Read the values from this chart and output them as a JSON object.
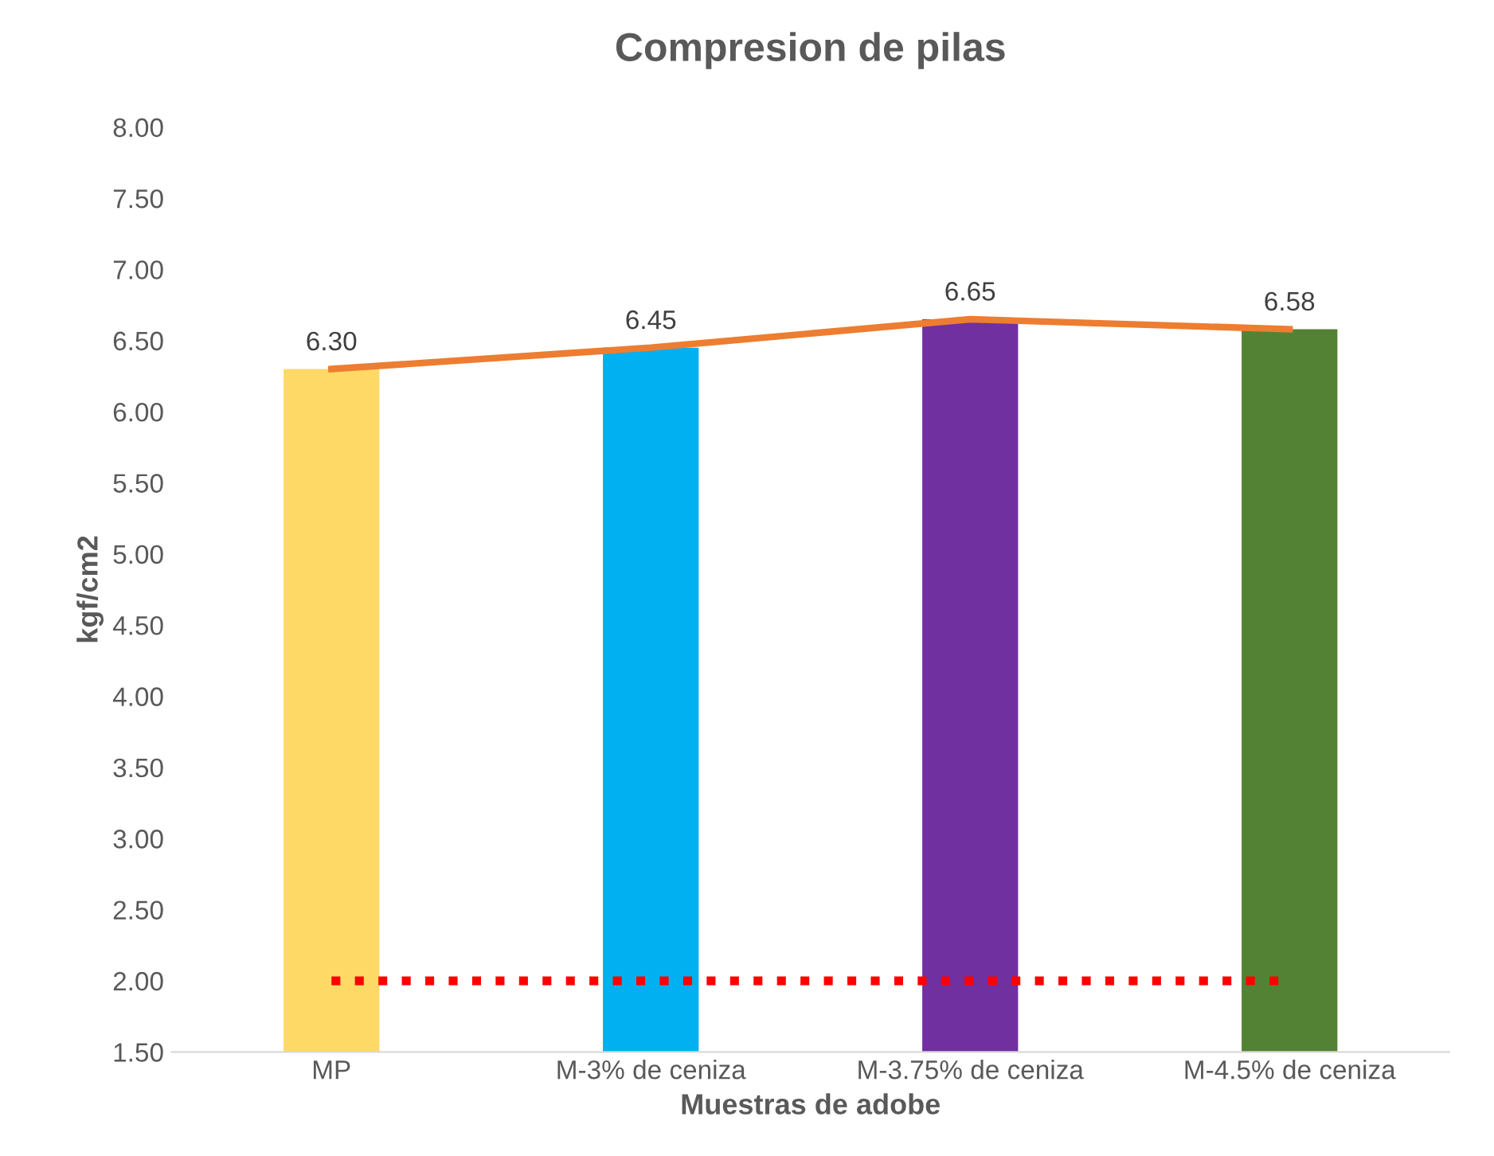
{
  "chart_data": {
    "type": "bar",
    "title": "Compresion de pilas",
    "xlabel": "Muestras de adobe",
    "ylabel": "kgf/cm2",
    "categories": [
      "MP",
      "M-3% de ceniza",
      "M-3.75% de ceniza",
      "M-4.5% de ceniza"
    ],
    "series": [
      {
        "colors": [
          "#ffd966",
          "#00b0f0",
          "#7030a0",
          "#548235"
        ],
        "values": [
          6.3,
          6.45,
          6.65,
          6.58
        ],
        "value_labels": [
          "6.30",
          "6.45",
          "6.65",
          "6.58"
        ]
      },
      {
        "type": "line",
        "color": "#ed7d31",
        "values": [
          6.3,
          6.45,
          6.65,
          6.58
        ],
        "line_style": "solid"
      },
      {
        "type": "line",
        "color": "#ff0000",
        "values": [
          2.0,
          2.0,
          2.0,
          2.0
        ],
        "line_style": "dotted"
      }
    ],
    "ylim": [
      1.5,
      8.0
    ],
    "yticks": [
      {
        "value": 1.5,
        "label": "1.50"
      },
      {
        "value": 2.0,
        "label": "2.00"
      },
      {
        "value": 2.5,
        "label": "2.50"
      },
      {
        "value": 3.0,
        "label": "3.00"
      },
      {
        "value": 3.5,
        "label": "3.50"
      },
      {
        "value": 4.0,
        "label": "4.00"
      },
      {
        "value": 4.5,
        "label": "4.50"
      },
      {
        "value": 5.0,
        "label": "5.00"
      },
      {
        "value": 5.5,
        "label": "5.50"
      },
      {
        "value": 6.0,
        "label": "6.00"
      },
      {
        "value": 6.5,
        "label": "6.50"
      },
      {
        "value": 7.0,
        "label": "7.00"
      },
      {
        "value": 7.5,
        "label": "7.50"
      },
      {
        "value": 8.0,
        "label": "8.00"
      }
    ],
    "grid": false,
    "legend": false
  }
}
